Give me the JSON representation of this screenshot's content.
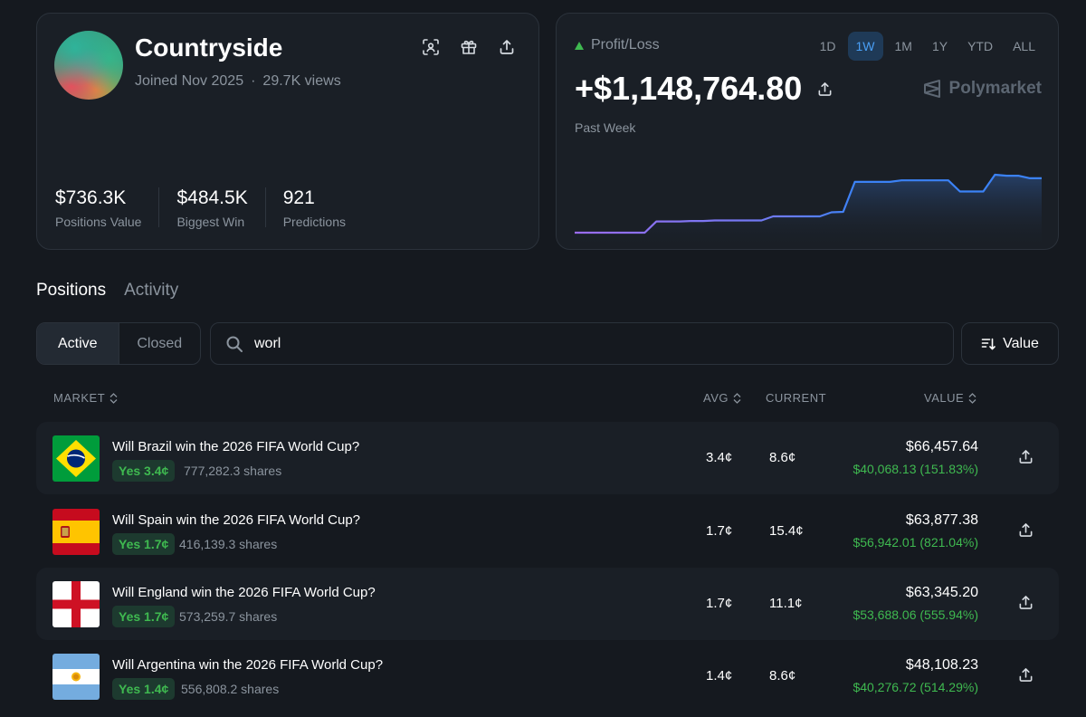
{
  "profile": {
    "name": "Countryside",
    "joined": "Joined Nov 2025",
    "separator": "·",
    "views": "29.7K views",
    "stats": [
      {
        "value": "$736.3K",
        "label": "Positions Value"
      },
      {
        "value": "$484.5K",
        "label": "Biggest Win"
      },
      {
        "value": "921",
        "label": "Predictions"
      }
    ],
    "action_icons": [
      "scan-icon",
      "gift-icon",
      "share-icon"
    ]
  },
  "pnl": {
    "label": "Profit/Loss",
    "value": "+$1,148,764.80",
    "period": "Past Week",
    "brand": "Polymarket",
    "ranges": [
      "1D",
      "1W",
      "1M",
      "1Y",
      "YTD",
      "ALL"
    ],
    "active_range": "1W",
    "colors": {
      "line_start": "#9b6cf0",
      "line_end": "#3b82f6",
      "positive": "#3fb950"
    }
  },
  "chart_data": {
    "type": "line",
    "title": "",
    "xlabel": "",
    "ylabel": "",
    "grid": false,
    "values": [
      0.0,
      0.0,
      0.0,
      0.0,
      0.0,
      0.0,
      0.0,
      0.22,
      0.22,
      0.22,
      0.23,
      0.23,
      0.24,
      0.24,
      0.24,
      0.24,
      0.24,
      0.32,
      0.32,
      0.32,
      0.32,
      0.32,
      0.4,
      0.41,
      1.0,
      1.0,
      1.0,
      1.0,
      1.03,
      1.03,
      1.03,
      1.03,
      1.03,
      0.81,
      0.81,
      0.81,
      1.14,
      1.12,
      1.12,
      1.07,
      1.07
    ]
  },
  "tabs": {
    "positions": "Positions",
    "activity": "Activity"
  },
  "filters": {
    "active": "Active",
    "closed": "Closed",
    "search_value": "worl",
    "sort_label": "Value"
  },
  "table": {
    "headers": {
      "market": "MARKET",
      "avg": "AVG",
      "current": "CURRENT",
      "value": "VALUE"
    },
    "rows": [
      {
        "title": "Will Brazil win the 2026 FIFA World Cup?",
        "outcome": "Yes 3.4¢",
        "shares": "777,282.3 shares",
        "avg": "3.4¢",
        "current": "8.6¢",
        "value": "$66,457.64",
        "pnl": "$40,068.13 (151.83%)"
      },
      {
        "title": "Will Spain win the 2026 FIFA World Cup?",
        "outcome": "Yes 1.7¢",
        "shares": "416,139.3 shares",
        "avg": "1.7¢",
        "current": "15.4¢",
        "value": "$63,877.38",
        "pnl": "$56,942.01 (821.04%)"
      },
      {
        "title": "Will England win the 2026 FIFA World Cup?",
        "outcome": "Yes 1.7¢",
        "shares": "573,259.7 shares",
        "avg": "1.7¢",
        "current": "11.1¢",
        "value": "$63,345.20",
        "pnl": "$53,688.06 (555.94%)"
      },
      {
        "title": "Will Argentina win the 2026 FIFA World Cup?",
        "outcome": "Yes 1.4¢",
        "shares": "556,808.2 shares",
        "avg": "1.4¢",
        "current": "8.6¢",
        "value": "$48,108.23",
        "pnl": "$40,276.72 (514.29%)"
      }
    ]
  }
}
